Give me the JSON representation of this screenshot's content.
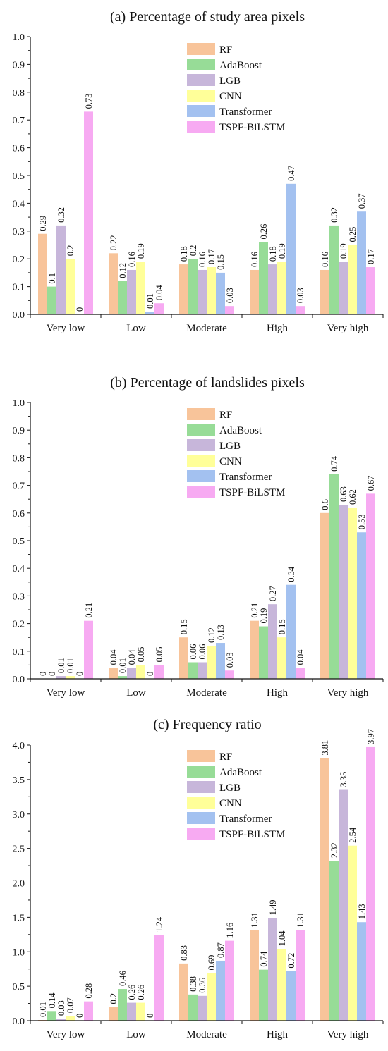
{
  "colors": {
    "RF": "#f8c49a",
    "AdaBoost": "#97dc97",
    "LGB": "#c7b6da",
    "CNN": "#ffff99",
    "Transformer": "#a3c1f0",
    "TSPF-BiLSTM": "#f7aaf2"
  },
  "chart_data": [
    {
      "type": "bar",
      "title": "(a)  Percentage of study area pixels",
      "categories": [
        "Very low",
        "Low",
        "Moderate",
        "High",
        "Very high"
      ],
      "ylim": [
        0,
        1.0
      ],
      "yticks": [
        "0.0",
        "0.1",
        "0.2",
        "0.3",
        "0.4",
        "0.5",
        "0.6",
        "0.7",
        "0.8",
        "0.9",
        "1.0"
      ],
      "legend_position": "top-center",
      "series": [
        {
          "name": "RF",
          "values": [
            0.29,
            0.22,
            0.18,
            0.16,
            0.16
          ],
          "labels": [
            "0.29",
            "0.22",
            "0.18",
            "0.16",
            "0.16"
          ]
        },
        {
          "name": "AdaBoost",
          "values": [
            0.1,
            0.12,
            0.2,
            0.26,
            0.32
          ],
          "labels": [
            "0.1",
            "0.12",
            "0.2",
            "0.26",
            "0.32"
          ]
        },
        {
          "name": "LGB",
          "values": [
            0.32,
            0.16,
            0.16,
            0.18,
            0.19
          ],
          "labels": [
            "0.32",
            "0.16",
            "0.16",
            "0.18",
            "0.19"
          ]
        },
        {
          "name": "CNN",
          "values": [
            0.2,
            0.19,
            0.17,
            0.19,
            0.25
          ],
          "labels": [
            "0.2",
            "0.19",
            "0.17",
            "0.19",
            "0.25"
          ]
        },
        {
          "name": "Transformer",
          "values": [
            0,
            0.01,
            0.15,
            0.47,
            0.37
          ],
          "labels": [
            "0",
            "0.01",
            "0.15",
            "0.47",
            "0.37"
          ]
        },
        {
          "name": "TSPF-BiLSTM",
          "values": [
            0.73,
            0.04,
            0.03,
            0.03,
            0.17
          ],
          "labels": [
            "0.73",
            "0.04",
            "0.03",
            "0.03",
            "0.17"
          ]
        }
      ]
    },
    {
      "type": "bar",
      "title": "(b)  Percentage of landslides pixels",
      "categories": [
        "Very low",
        "Low",
        "Moderate",
        "High",
        "Very high"
      ],
      "ylim": [
        0,
        1.0
      ],
      "yticks": [
        "0.0",
        "0.1",
        "0.2",
        "0.3",
        "0.4",
        "0.5",
        "0.6",
        "0.7",
        "0.8",
        "0.9",
        "1.0"
      ],
      "legend_position": "top-center",
      "series": [
        {
          "name": "RF",
          "values": [
            0,
            0.04,
            0.15,
            0.21,
            0.6
          ],
          "labels": [
            "0",
            "0.04",
            "0.15",
            "0.21",
            "0.6"
          ]
        },
        {
          "name": "AdaBoost",
          "values": [
            0,
            0.01,
            0.06,
            0.19,
            0.74
          ],
          "labels": [
            "0",
            "0.01",
            "0.06",
            "0.19",
            "0.74"
          ]
        },
        {
          "name": "LGB",
          "values": [
            0.01,
            0.04,
            0.06,
            0.27,
            0.63
          ],
          "labels": [
            "0.01",
            "0.04",
            "0.06",
            "0.27",
            "0.63"
          ]
        },
        {
          "name": "CNN",
          "values": [
            0.01,
            0.05,
            0.12,
            0.15,
            0.62
          ],
          "labels": [
            "0.01",
            "0.05",
            "0.12",
            "0.15",
            "0.62"
          ]
        },
        {
          "name": "Transformer",
          "values": [
            0,
            0,
            0.13,
            0.34,
            0.53
          ],
          "labels": [
            "0",
            "0",
            "0.13",
            "0.34",
            "0.53"
          ]
        },
        {
          "name": "TSPF-BiLSTM",
          "values": [
            0.21,
            0.05,
            0.03,
            0.04,
            0.67
          ],
          "labels": [
            "0.21",
            "0.05",
            "0.03",
            "0.04",
            "0.67"
          ]
        }
      ]
    },
    {
      "type": "bar",
      "title": "(c)  Frequency ratio",
      "categories": [
        "Very low",
        "Low",
        "Moderate",
        "High",
        "Very high"
      ],
      "ylim": [
        0,
        4.0
      ],
      "yticks": [
        "0.0",
        "0.5",
        "1.0",
        "1.5",
        "2.0",
        "2.5",
        "3.0",
        "3.5",
        "4.0"
      ],
      "legend_position": "top-center",
      "series": [
        {
          "name": "RF",
          "values": [
            0.01,
            0.2,
            0.83,
            1.31,
            3.81
          ],
          "labels": [
            "0.01",
            "0.2",
            "0.83",
            "1.31",
            "3.81"
          ]
        },
        {
          "name": "AdaBoost",
          "values": [
            0.14,
            0.46,
            0.38,
            0.74,
            2.32
          ],
          "labels": [
            "0.14",
            "0.46",
            "0.38",
            "0.74",
            "2.32"
          ]
        },
        {
          "name": "LGB",
          "values": [
            0.03,
            0.26,
            0.36,
            1.49,
            3.35
          ],
          "labels": [
            "0.03",
            "0.26",
            "0.36",
            "1.49",
            "3.35"
          ]
        },
        {
          "name": "CNN",
          "values": [
            0.07,
            0.26,
            0.69,
            1.04,
            2.54
          ],
          "labels": [
            "0.07",
            "0.26",
            "0.69",
            "1.04",
            "2.54"
          ]
        },
        {
          "name": "Transformer",
          "values": [
            0,
            0,
            0.87,
            0.72,
            1.43
          ],
          "labels": [
            "0",
            "0",
            "0.87",
            "0.72",
            "1.43"
          ]
        },
        {
          "name": "TSPF-BiLSTM",
          "values": [
            0.28,
            1.24,
            1.16,
            1.31,
            3.97
          ],
          "labels": [
            "0.28",
            "1.24",
            "1.16",
            "1.31",
            "3.97"
          ]
        }
      ]
    }
  ]
}
